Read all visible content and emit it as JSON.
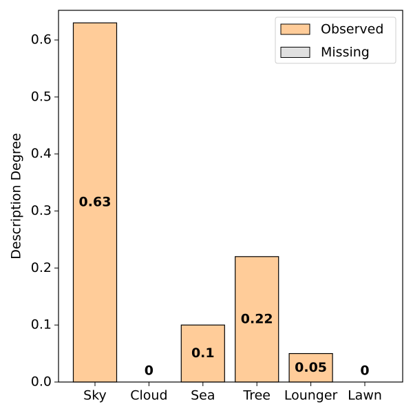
{
  "chart_data": {
    "type": "bar",
    "y_label": "Description Degree",
    "categories": [
      "Sky",
      "Cloud",
      "Sea",
      "Tree",
      "Lounger",
      "Lawn"
    ],
    "series": [
      {
        "name": "Observed",
        "color": "#ffcc99",
        "values": [
          0.63,
          null,
          0.1,
          0.22,
          0.05,
          null
        ]
      },
      {
        "name": "Missing",
        "color": "#e0e0e0",
        "values": [
          null,
          0,
          null,
          null,
          null,
          0
        ]
      }
    ],
    "ylim": [
      0,
      0.652
    ],
    "yticks": [
      {
        "value": 0,
        "label": "0.0"
      },
      0.1,
      0.2,
      0.3,
      0.4,
      0.5,
      0.6
    ],
    "legend": "upper right"
  }
}
